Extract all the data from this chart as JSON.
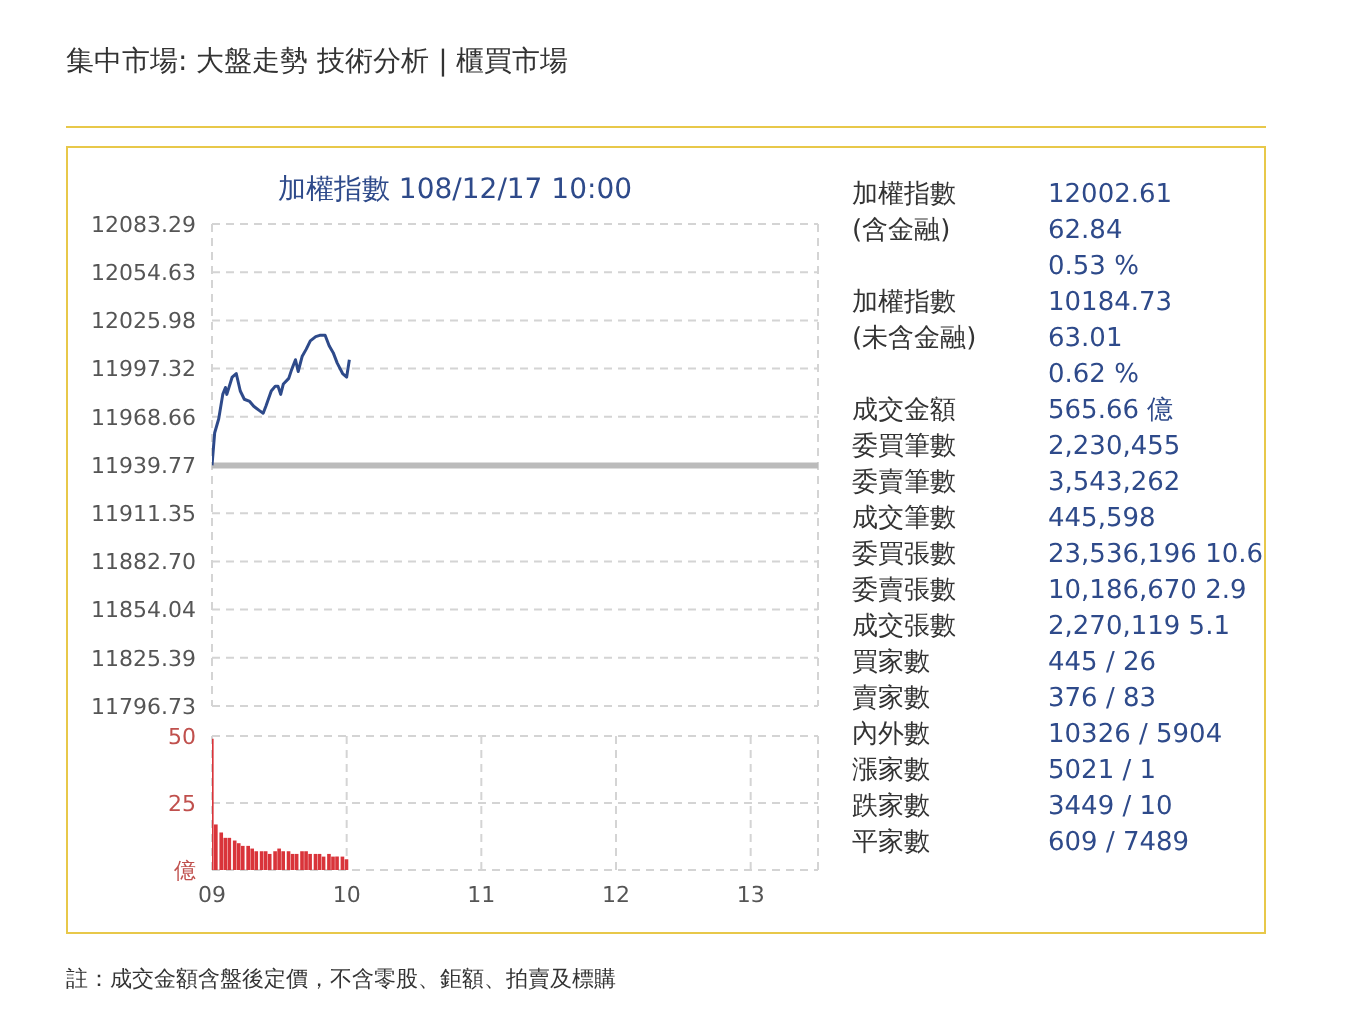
{
  "chart_data": [
    {
      "type": "line",
      "title": "加權指數 108/12/17 10:00",
      "tick_labels": "y",
      "grid": true,
      "line_style": "solid",
      "marker": "none",
      "x": [
        9,
        9.02,
        9.05,
        9.08,
        9.1,
        9.11,
        9.15,
        9.18,
        9.21,
        9.24,
        9.28,
        9.31,
        9.35,
        9.38,
        9.4,
        9.44,
        9.47,
        9.49,
        9.51,
        9.53,
        9.57,
        9.59,
        9.62,
        9.64,
        9.67,
        9.7,
        9.73,
        9.77,
        9.8,
        9.84,
        9.87,
        9.9,
        9.93,
        9.97,
        10,
        10.02
      ],
      "series": [
        {
          "color": "#2e4a8a",
          "values": [
            11939.8,
            11959.2,
            11967.5,
            11982.0,
            11986.1,
            11982.0,
            11992.3,
            11994.4,
            11984.0,
            11979.1,
            11977.8,
            11974.9,
            11972.5,
            11970.8,
            11974.9,
            11984.0,
            11986.9,
            11986.9,
            11982.0,
            11988.2,
            11991.5,
            11996.4,
            12002.6,
            11995.6,
            12004.7,
            12008.9,
            12013.8,
            12016.3,
            12017.1,
            12017.1,
            12010.9,
            12006.8,
            12000.6,
            11994.4,
            11992.3,
            12002.6
          ]
        }
      ],
      "xlim": [
        9,
        13.5
      ],
      "xticks": [
        9,
        10,
        11,
        12,
        13
      ],
      "ylim": [
        11796.73,
        12083.29
      ],
      "yticks": [
        11796.73,
        11825.39,
        11854.04,
        {
          "value": 11882.7,
          "label": "11882.70"
        },
        11911.35,
        11939.77,
        11968.66,
        11997.32,
        12025.98,
        12054.63,
        12083.29
      ],
      "ref_lines": [
        {
          "axis": "y",
          "value": 11939.77,
          "color": "#bbbbbb"
        }
      ]
    },
    {
      "type": "bar",
      "grid": true,
      "x": [
        9,
        9.03,
        9.07,
        9.1,
        9.13,
        9.17,
        9.2,
        9.23,
        9.27,
        9.3,
        9.33,
        9.37,
        9.4,
        9.43,
        9.47,
        9.5,
        9.53,
        9.57,
        9.6,
        9.63,
        9.67,
        9.7,
        9.73,
        9.77,
        9.8,
        9.83,
        9.87,
        9.9,
        9.93,
        9.97,
        10
      ],
      "series": [
        {
          "color": "#d9343a",
          "values": [
            49,
            17,
            14,
            12,
            12,
            11,
            10,
            9,
            9,
            8,
            7,
            7,
            7,
            6,
            7,
            8,
            7,
            7,
            6,
            6,
            7,
            7,
            6,
            6,
            6,
            5,
            6,
            5,
            5,
            5,
            4
          ]
        }
      ],
      "xlim": [
        9,
        13.5
      ],
      "xticks": [
        {
          "value": 9,
          "label": "09"
        },
        10,
        11,
        12,
        13
      ],
      "ylim": [
        0,
        50
      ],
      "yticks": [
        {
          "value": 0,
          "label": "億"
        },
        25,
        50
      ]
    },
    {
      "type": "other",
      "categories": [
        "加權指數",
        "(含金融)",
        null,
        "加權指數",
        "(未含金融)",
        null,
        "成交金額",
        "委買筆數",
        "委賣筆數",
        "成交筆數",
        "委買張數",
        "委賣張數",
        "成交張數",
        "買家數",
        "賣家數",
        "內外數",
        "漲家數",
        "跌家數",
        "平家數"
      ],
      "value_labels": [
        "12002.61",
        "62.84",
        "0.53 %",
        "10184.73",
        "63.01",
        "0.62 %",
        "565.66 億",
        "2,230,455",
        "3,543,262",
        "445,598",
        "23,536,196 10.6",
        "10,186,670 2.9",
        "2,270,119 5.1",
        "445 / 26",
        "376 / 83",
        "10326 / 5904",
        "5021 / 1",
        "3449 / 10",
        "609 / 7489"
      ],
      "annotations": [
        "集中市場: 大盤走勢 技術分析 | 櫃買市場",
        "註：成交金額含盤後定價，不含零股、鉅額、拍賣及標購"
      ]
    }
  ]
}
